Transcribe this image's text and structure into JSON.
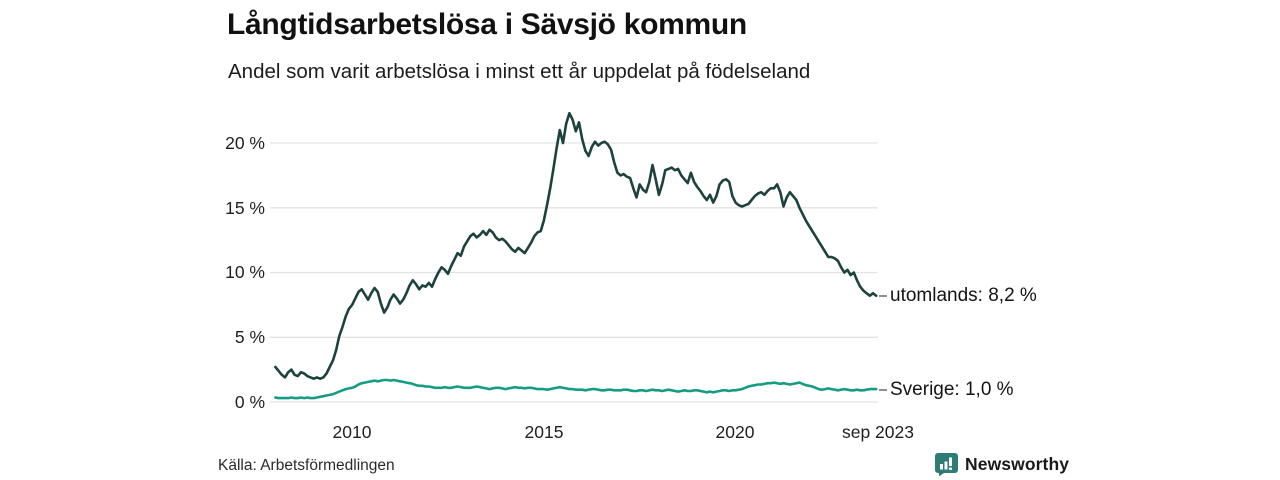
{
  "header": {
    "title": "Långtidsarbetslösa i Sävsjö kommun",
    "subtitle": "Andel som varit arbetslösa i minst ett år uppdelat på födelseland"
  },
  "footer": {
    "source": "Källa: Arbetsförmedlingen",
    "brand": "Newsworthy",
    "brand_color": "#2e7c74"
  },
  "chart_data": {
    "type": "line",
    "title": "Långtidsarbetslösa i Sävsjö kommun",
    "subtitle": "Andel som varit arbetslösa i minst ett år uppdelat på födelseland",
    "unit": "%",
    "grid": "horizontal-only",
    "grid_color": "#e3e3e3",
    "legend_position": "right-of-line-end",
    "ylim": [
      0,
      22.5
    ],
    "y_gridline_values": [
      0,
      5,
      10,
      15,
      20
    ],
    "y_ticks": [
      "0 %",
      "5 %",
      "10 %",
      "15 %",
      "20 %"
    ],
    "x_ticks": [
      "2010",
      "2015",
      "2020",
      "sep 2023"
    ],
    "x_range": {
      "start": "2008-01",
      "end": "2023-09",
      "interval": "monthly"
    },
    "series": [
      {
        "name": "utomlands",
        "label": "utomlands: 8,2 %",
        "last_value": 8.2,
        "color": "#1d423c",
        "values": [
          2.7,
          2.4,
          2.1,
          1.9,
          2.3,
          2.5,
          2.1,
          2.0,
          2.3,
          2.2,
          2.0,
          1.9,
          1.8,
          1.9,
          1.8,
          1.9,
          2.2,
          2.7,
          3.2,
          4.0,
          5.1,
          5.8,
          6.6,
          7.2,
          7.5,
          8.0,
          8.5,
          8.7,
          8.3,
          7.9,
          8.4,
          8.8,
          8.5,
          7.6,
          6.9,
          7.3,
          7.9,
          8.3,
          8.0,
          7.6,
          7.9,
          8.4,
          9.0,
          9.4,
          9.1,
          8.7,
          9.0,
          8.9,
          9.2,
          8.9,
          9.5,
          10.0,
          10.4,
          10.2,
          9.9,
          10.5,
          11.0,
          11.5,
          11.3,
          12.0,
          12.4,
          12.8,
          13.0,
          12.7,
          12.9,
          13.2,
          12.9,
          13.3,
          13.1,
          12.7,
          12.5,
          12.6,
          12.4,
          12.1,
          11.8,
          11.6,
          11.9,
          11.7,
          11.5,
          11.9,
          12.3,
          12.8,
          13.1,
          13.2,
          14.0,
          15.2,
          16.5,
          18.0,
          19.6,
          21.0,
          20.0,
          21.5,
          22.3,
          21.8,
          20.9,
          21.6,
          20.3,
          19.4,
          19.0,
          19.7,
          20.1,
          19.8,
          20.0,
          20.1,
          19.9,
          19.5,
          18.5,
          17.7,
          17.5,
          17.6,
          17.4,
          17.3,
          16.5,
          15.8,
          16.8,
          16.4,
          16.2,
          17.0,
          18.3,
          17.2,
          16.0,
          16.8,
          17.9,
          18.0,
          18.1,
          17.9,
          18.0,
          17.5,
          17.2,
          16.9,
          17.7,
          17.0,
          16.6,
          16.3,
          15.9,
          15.6,
          16.0,
          15.4,
          15.9,
          16.8,
          17.1,
          17.2,
          17.0,
          15.9,
          15.4,
          15.2,
          15.1,
          15.2,
          15.3,
          15.6,
          15.9,
          16.1,
          16.2,
          16.0,
          16.3,
          16.5,
          16.5,
          16.8,
          16.2,
          15.1,
          15.8,
          16.2,
          15.9,
          15.6,
          15.0,
          14.5,
          14.0,
          13.6,
          13.2,
          12.8,
          12.4,
          12.0,
          11.6,
          11.2,
          11.2,
          11.1,
          10.9,
          10.4,
          10.0,
          10.2,
          9.8,
          10.0,
          9.4,
          8.9,
          8.6,
          8.4,
          8.2,
          8.4,
          8.2
        ]
      },
      {
        "name": "Sverige",
        "label": "Sverige: 1,0 %",
        "last_value": 1.0,
        "color": "#169c82",
        "values": [
          0.35,
          0.3,
          0.3,
          0.3,
          0.3,
          0.35,
          0.3,
          0.3,
          0.35,
          0.3,
          0.35,
          0.3,
          0.3,
          0.35,
          0.4,
          0.45,
          0.5,
          0.55,
          0.6,
          0.7,
          0.8,
          0.9,
          1.0,
          1.05,
          1.1,
          1.2,
          1.35,
          1.45,
          1.5,
          1.55,
          1.6,
          1.65,
          1.6,
          1.65,
          1.7,
          1.7,
          1.65,
          1.7,
          1.65,
          1.6,
          1.55,
          1.5,
          1.45,
          1.4,
          1.3,
          1.25,
          1.25,
          1.2,
          1.2,
          1.15,
          1.1,
          1.1,
          1.1,
          1.15,
          1.1,
          1.1,
          1.15,
          1.2,
          1.15,
          1.1,
          1.1,
          1.1,
          1.15,
          1.2,
          1.15,
          1.1,
          1.05,
          1.0,
          1.05,
          1.1,
          1.1,
          1.05,
          1.0,
          1.05,
          1.1,
          1.15,
          1.1,
          1.1,
          1.05,
          1.1,
          1.1,
          1.05,
          1.0,
          1.0,
          1.0,
          0.95,
          1.0,
          1.05,
          1.1,
          1.15,
          1.1,
          1.05,
          1.0,
          1.0,
          0.95,
          0.95,
          0.95,
          0.9,
          0.95,
          1.0,
          1.0,
          0.95,
          0.9,
          0.9,
          0.95,
          0.95,
          0.9,
          0.9,
          0.9,
          0.95,
          0.95,
          0.9,
          0.85,
          0.85,
          0.9,
          0.9,
          0.85,
          0.9,
          0.95,
          0.9,
          0.9,
          0.85,
          0.9,
          0.95,
          0.9,
          0.85,
          0.8,
          0.85,
          0.9,
          0.85,
          0.85,
          0.9,
          0.9,
          0.85,
          0.8,
          0.75,
          0.8,
          0.75,
          0.8,
          0.85,
          0.9,
          0.9,
          0.85,
          0.9,
          0.9,
          0.95,
          1.0,
          1.1,
          1.2,
          1.25,
          1.3,
          1.35,
          1.35,
          1.4,
          1.45,
          1.45,
          1.5,
          1.45,
          1.4,
          1.45,
          1.4,
          1.35,
          1.4,
          1.45,
          1.5,
          1.4,
          1.3,
          1.25,
          1.2,
          1.1,
          1.0,
          0.95,
          1.0,
          1.05,
          1.0,
          0.95,
          0.9,
          0.95,
          1.0,
          0.95,
          0.9,
          0.9,
          0.95,
          0.9,
          0.9,
          0.95,
          1.0,
          1.0,
          1.0
        ]
      }
    ]
  }
}
